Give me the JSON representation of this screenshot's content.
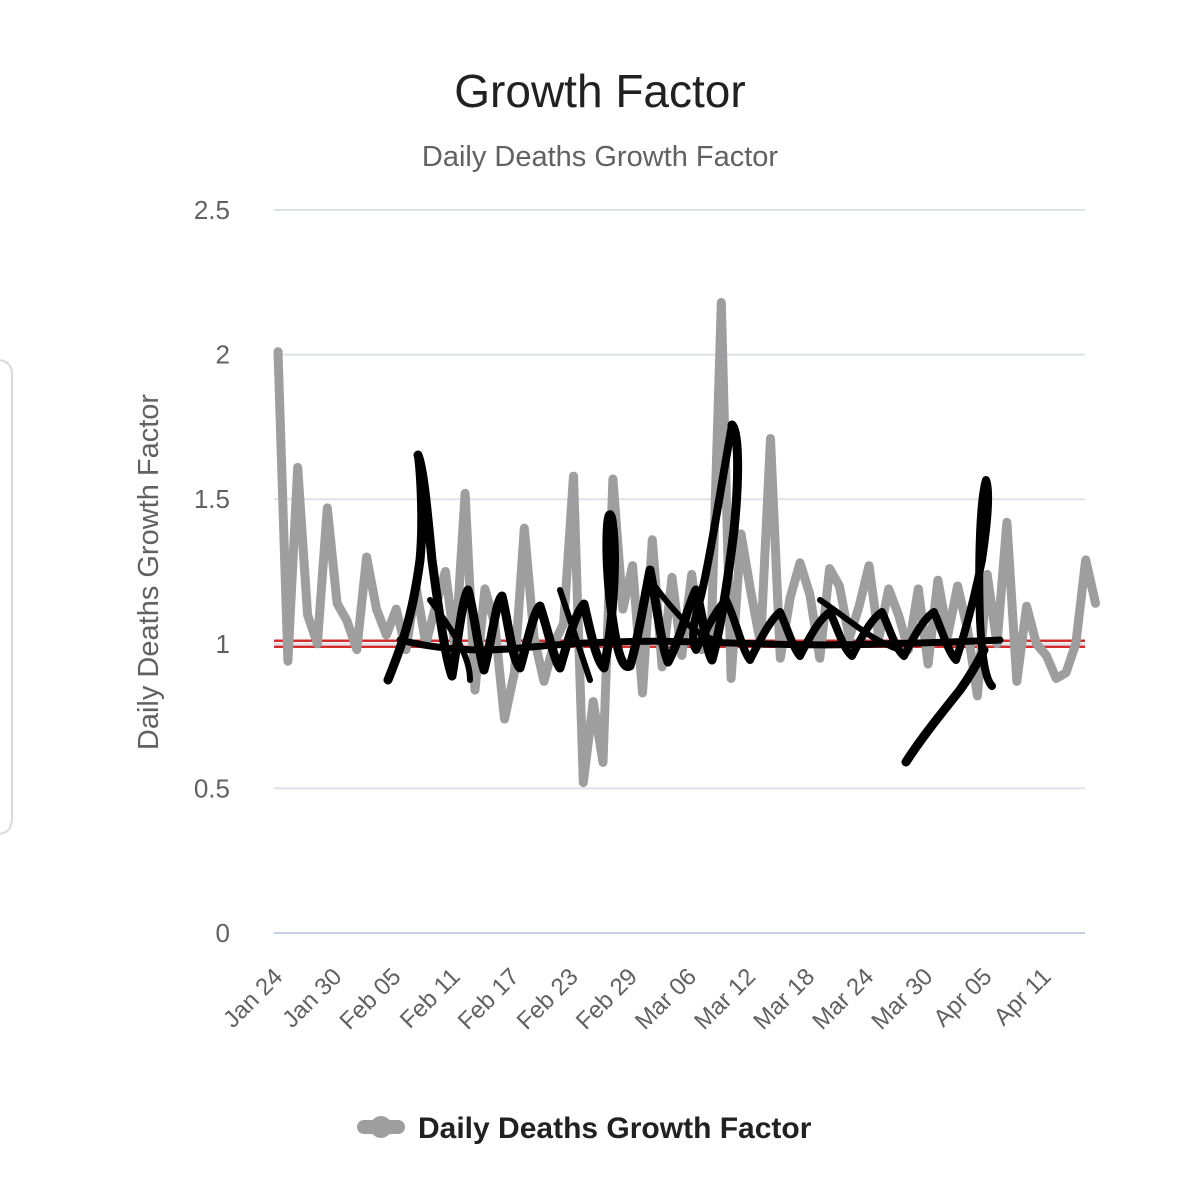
{
  "chart_data": {
    "type": "line",
    "title": "Growth Factor",
    "subtitle": "Daily Deaths Growth Factor",
    "xlabel": "",
    "ylabel": "Daily Deaths Growth Factor",
    "ylim": [
      0,
      2.5
    ],
    "yticks": [
      "0",
      "0.5",
      "1",
      "1.5",
      "2",
      "2.5"
    ],
    "ytick_values": [
      0,
      0.5,
      1,
      1.5,
      2,
      2.5
    ],
    "xtick_labels": [
      "Jan 24",
      "Jan 30",
      "Feb 05",
      "Feb 11",
      "Feb 17",
      "Feb 23",
      "Feb 29",
      "Mar 06",
      "Mar 12",
      "Mar 18",
      "Mar 24",
      "Mar 30",
      "Apr 05",
      "Apr 11"
    ],
    "x_start_date": "2020-01-24",
    "grid": true,
    "legend_position": "bottom",
    "reference_line": {
      "y": 1,
      "color": "#d32f2f"
    },
    "series": [
      {
        "name": "Daily Deaths Growth Factor",
        "color": "#9e9e9e",
        "x": [
          "2020-01-24",
          "2020-01-25",
          "2020-01-26",
          "2020-01-27",
          "2020-01-28",
          "2020-01-29",
          "2020-01-30",
          "2020-01-31",
          "2020-02-01",
          "2020-02-02",
          "2020-02-03",
          "2020-02-04",
          "2020-02-05",
          "2020-02-06",
          "2020-02-07",
          "2020-02-08",
          "2020-02-09",
          "2020-02-10",
          "2020-02-11",
          "2020-02-12",
          "2020-02-13",
          "2020-02-14",
          "2020-02-15",
          "2020-02-16",
          "2020-02-17",
          "2020-02-18",
          "2020-02-19",
          "2020-02-20",
          "2020-02-21",
          "2020-02-22",
          "2020-02-23",
          "2020-02-24",
          "2020-02-25",
          "2020-02-26",
          "2020-02-27",
          "2020-02-28",
          "2020-02-29",
          "2020-03-01",
          "2020-03-02",
          "2020-03-03",
          "2020-03-04",
          "2020-03-05",
          "2020-03-06",
          "2020-03-07",
          "2020-03-08",
          "2020-03-09",
          "2020-03-10",
          "2020-03-11",
          "2020-03-12",
          "2020-03-13",
          "2020-03-14",
          "2020-03-15",
          "2020-03-16",
          "2020-03-17",
          "2020-03-18",
          "2020-03-19",
          "2020-03-20",
          "2020-03-21",
          "2020-03-22",
          "2020-03-23",
          "2020-03-24",
          "2020-03-25",
          "2020-03-26",
          "2020-03-27",
          "2020-03-28",
          "2020-03-29",
          "2020-03-30",
          "2020-03-31",
          "2020-04-01",
          "2020-04-02",
          "2020-04-03",
          "2020-04-04",
          "2020-04-05",
          "2020-04-06",
          "2020-04-07",
          "2020-04-08",
          "2020-04-09",
          "2020-04-10",
          "2020-04-11",
          "2020-04-12",
          "2020-04-13",
          "2020-04-14",
          "2020-04-15",
          "2020-04-16"
        ],
        "values": [
          2.01,
          0.94,
          1.61,
          1.1,
          1.0,
          1.47,
          1.14,
          1.08,
          0.98,
          1.3,
          1.12,
          1.03,
          1.12,
          0.98,
          1.2,
          1.0,
          1.13,
          1.25,
          0.98,
          1.52,
          0.84,
          1.19,
          1.07,
          0.74,
          0.9,
          1.4,
          1.02,
          0.87,
          1.0,
          1.07,
          1.58,
          0.52,
          0.8,
          0.59,
          1.57,
          1.12,
          1.27,
          0.83,
          1.36,
          0.92,
          1.23,
          0.96,
          1.24,
          0.98,
          1.05,
          2.18,
          0.88,
          1.38,
          1.18,
          1.0,
          1.71,
          0.95,
          1.16,
          1.28,
          1.17,
          0.95,
          1.26,
          1.2,
          1.02,
          1.13,
          1.27,
          1.02,
          1.19,
          1.1,
          0.98,
          1.19,
          0.93,
          1.22,
          1.03,
          1.2,
          1.05,
          0.82,
          1.24,
          1.0,
          1.42,
          0.87,
          1.13,
          1.0,
          0.96,
          0.88,
          0.9,
          1.0,
          1.29,
          1.14
        ]
      }
    ]
  },
  "legend": {
    "label": "Daily Deaths Growth Factor"
  }
}
